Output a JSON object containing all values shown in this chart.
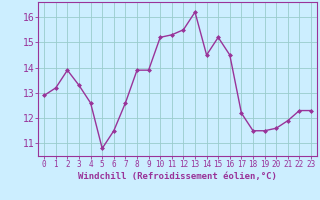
{
  "x": [
    0,
    1,
    2,
    3,
    4,
    5,
    6,
    7,
    8,
    9,
    10,
    11,
    12,
    13,
    14,
    15,
    16,
    17,
    18,
    19,
    20,
    21,
    22,
    23
  ],
  "y": [
    12.9,
    13.2,
    13.9,
    13.3,
    12.6,
    10.8,
    11.5,
    12.6,
    13.9,
    13.9,
    15.2,
    15.3,
    15.5,
    16.2,
    14.5,
    15.2,
    14.5,
    12.2,
    11.5,
    11.5,
    11.6,
    11.9,
    12.3,
    12.3
  ],
  "line_color": "#993399",
  "marker": "D",
  "marker_size": 2,
  "background_color": "#cceeff",
  "grid_color": "#99cccc",
  "xlabel": "Windchill (Refroidissement éolien,°C)",
  "ylim": [
    10.5,
    16.6
  ],
  "xlim": [
    -0.5,
    23.5
  ],
  "yticks": [
    11,
    12,
    13,
    14,
    15,
    16
  ],
  "xtick_labels": [
    "0",
    "1",
    "2",
    "3",
    "4",
    "5",
    "6",
    "7",
    "8",
    "9",
    "10",
    "11",
    "12",
    "13",
    "14",
    "15",
    "16",
    "17",
    "18",
    "19",
    "20",
    "21",
    "22",
    "23"
  ],
  "tick_color": "#993399",
  "label_color": "#993399",
  "font_family": "monospace",
  "linewidth": 1.0,
  "xlabel_fontsize": 6.5,
  "ytick_fontsize": 7,
  "xtick_fontsize": 5.5
}
